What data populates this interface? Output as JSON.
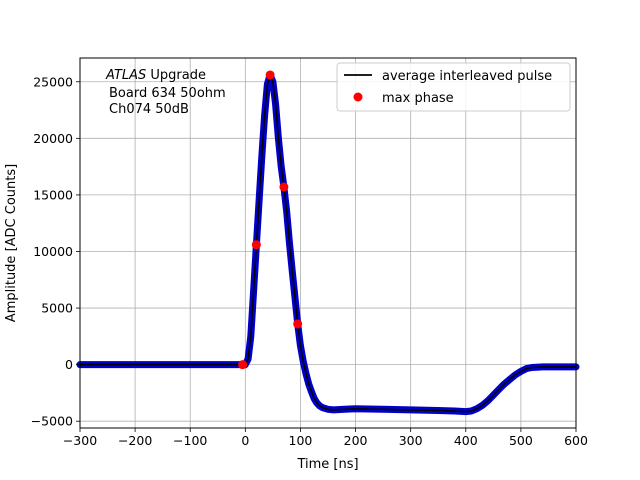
{
  "chart_data": {
    "type": "scatter",
    "title": "",
    "xlabel": "Time [ns]",
    "ylabel": "Amplitude [ADC Counts]",
    "xlim": [
      -300,
      600
    ],
    "ylim": [
      -5600,
      27100
    ],
    "grid": true,
    "xticks": [
      -300,
      -200,
      -100,
      0,
      100,
      200,
      300,
      400,
      500,
      600
    ],
    "yticks": [
      -5000,
      0,
      5000,
      10000,
      15000,
      20000,
      25000
    ],
    "annotation": {
      "line1_italic": "ATLAS",
      "line1_rest": " Upgrade",
      "line2": "Board 634 50ohm",
      "line3": "Ch074 50dB"
    },
    "legend": {
      "location": "upper right",
      "entries": [
        {
          "label": "average interleaved pulse",
          "style": "line",
          "color": "#000000"
        },
        {
          "label": "max phase",
          "style": "marker",
          "color": "#ff0000"
        }
      ]
    },
    "series": [
      {
        "name": "average interleaved pulse",
        "style": "line+markers",
        "color": "#000000",
        "marker_color": "#0000cc",
        "x": [
          -300,
          -200,
          -100,
          -10,
          -5,
          0,
          5,
          10,
          15,
          20,
          25,
          30,
          35,
          40,
          45,
          50,
          55,
          60,
          65,
          70,
          75,
          80,
          85,
          90,
          95,
          100,
          105,
          110,
          115,
          120,
          125,
          130,
          135,
          140,
          150,
          160,
          180,
          200,
          250,
          300,
          350,
          380,
          400,
          410,
          420,
          430,
          440,
          450,
          460,
          470,
          480,
          490,
          500,
          510,
          520,
          540,
          560,
          580,
          600
        ],
        "y": [
          0,
          0,
          0,
          0,
          0,
          0,
          500,
          2500,
          6500,
          10600,
          14500,
          18500,
          22000,
          24800,
          25600,
          25000,
          23000,
          20000,
          17500,
          15700,
          13500,
          10800,
          8300,
          6000,
          3600,
          1700,
          300,
          -800,
          -1700,
          -2400,
          -3000,
          -3400,
          -3650,
          -3800,
          -3950,
          -4000,
          -3950,
          -3900,
          -3950,
          -4000,
          -4050,
          -4100,
          -4150,
          -4100,
          -3900,
          -3600,
          -3200,
          -2700,
          -2200,
          -1700,
          -1300,
          -900,
          -600,
          -350,
          -250,
          -200,
          -200,
          -200,
          -200
        ]
      },
      {
        "name": "max phase",
        "style": "markers",
        "color": "#ff0000",
        "x": [
          -5,
          20,
          45,
          70,
          95
        ],
        "y": [
          0,
          10600,
          25600,
          15700,
          3600
        ]
      }
    ]
  }
}
